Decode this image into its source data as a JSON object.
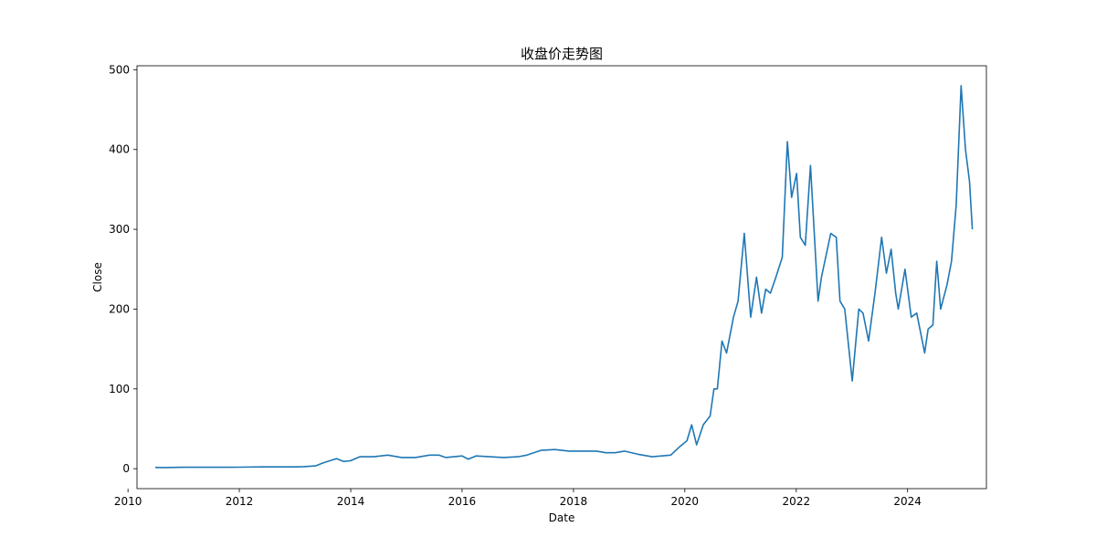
{
  "chart_data": {
    "type": "line",
    "title": "收盘价走势图",
    "xlabel": "Date",
    "ylabel": "Close",
    "x_ticks": [
      "2010",
      "2012",
      "2014",
      "2016",
      "2018",
      "2020",
      "2022",
      "2024"
    ],
    "y_ticks": [
      "0",
      "100",
      "200",
      "300",
      "400",
      "500"
    ],
    "xlim": [
      "2010-03-01",
      "2025-06-01"
    ],
    "ylim": [
      -25,
      505
    ],
    "grid": false,
    "legend": "none",
    "colors": {
      "line": "#1f77b4",
      "axes": "#000000",
      "background": "#ffffff"
    },
    "series": [
      {
        "x": [
          "2010-06-29",
          "2010-09-01",
          "2011-01-01",
          "2011-06-01",
          "2012-01-01",
          "2012-06-01",
          "2013-01-01",
          "2013-03-01",
          "2013-05-15",
          "2013-07-01",
          "2013-09-01",
          "2013-10-01",
          "2013-11-15",
          "2014-01-01",
          "2014-03-01",
          "2014-06-01",
          "2014-09-01",
          "2014-12-01",
          "2015-03-01",
          "2015-06-01",
          "2015-08-01",
          "2015-09-15",
          "2016-01-01",
          "2016-02-10",
          "2016-04-01",
          "2016-07-01",
          "2016-10-01",
          "2017-01-01",
          "2017-03-01",
          "2017-06-01",
          "2017-09-01",
          "2017-12-01",
          "2018-03-01",
          "2018-06-01",
          "2018-08-01",
          "2018-10-01",
          "2018-12-01",
          "2019-03-01",
          "2019-06-01",
          "2019-08-01",
          "2019-10-01",
          "2019-12-01",
          "2020-01-15",
          "2020-02-15",
          "2020-03-18",
          "2020-05-01",
          "2020-06-15",
          "2020-07-10",
          "2020-08-01",
          "2020-09-01",
          "2020-10-01",
          "2020-11-15",
          "2020-12-15",
          "2021-01-25",
          "2021-03-08",
          "2021-04-15",
          "2021-05-18",
          "2021-06-15",
          "2021-07-15",
          "2021-08-20",
          "2021-10-01",
          "2021-11-04",
          "2021-12-01",
          "2022-01-03",
          "2022-01-28",
          "2022-03-01",
          "2022-04-04",
          "2022-05-24",
          "2022-06-15",
          "2022-08-15",
          "2022-09-20",
          "2022-10-15",
          "2022-11-15",
          "2023-01-03",
          "2023-02-15",
          "2023-03-15",
          "2023-04-20",
          "2023-06-01",
          "2023-07-15",
          "2023-08-15",
          "2023-09-15",
          "2023-10-15",
          "2023-11-01",
          "2023-12-15",
          "2024-01-25",
          "2024-03-01",
          "2024-04-22",
          "2024-05-15",
          "2024-06-15",
          "2024-07-10",
          "2024-08-05",
          "2024-09-15",
          "2024-10-15",
          "2024-11-15",
          "2024-12-17",
          "2025-01-15",
          "2025-02-10",
          "2025-03-01"
        ],
        "y": [
          1.6,
          1.4,
          1.8,
          1.8,
          1.9,
          2.2,
          2.3,
          2.6,
          3.5,
          7,
          11,
          12.5,
          9,
          10,
          15,
          15,
          17,
          14,
          14,
          17,
          17,
          14,
          16,
          12,
          16,
          15,
          14,
          15,
          17,
          23,
          24,
          22,
          22,
          22,
          20,
          20,
          22,
          18,
          15,
          16,
          17,
          28,
          35,
          55,
          30,
          55,
          66,
          100,
          100,
          160,
          145,
          190,
          210,
          295,
          190,
          240,
          195,
          225,
          220,
          240,
          265,
          410,
          340,
          370,
          290,
          280,
          380,
          210,
          240,
          295,
          290,
          210,
          200,
          110,
          200,
          195,
          160,
          220,
          290,
          245,
          275,
          220,
          200,
          250,
          190,
          195,
          145,
          175,
          180,
          260,
          200,
          230,
          260,
          330,
          480,
          400,
          360,
          300
        ]
      }
    ]
  }
}
